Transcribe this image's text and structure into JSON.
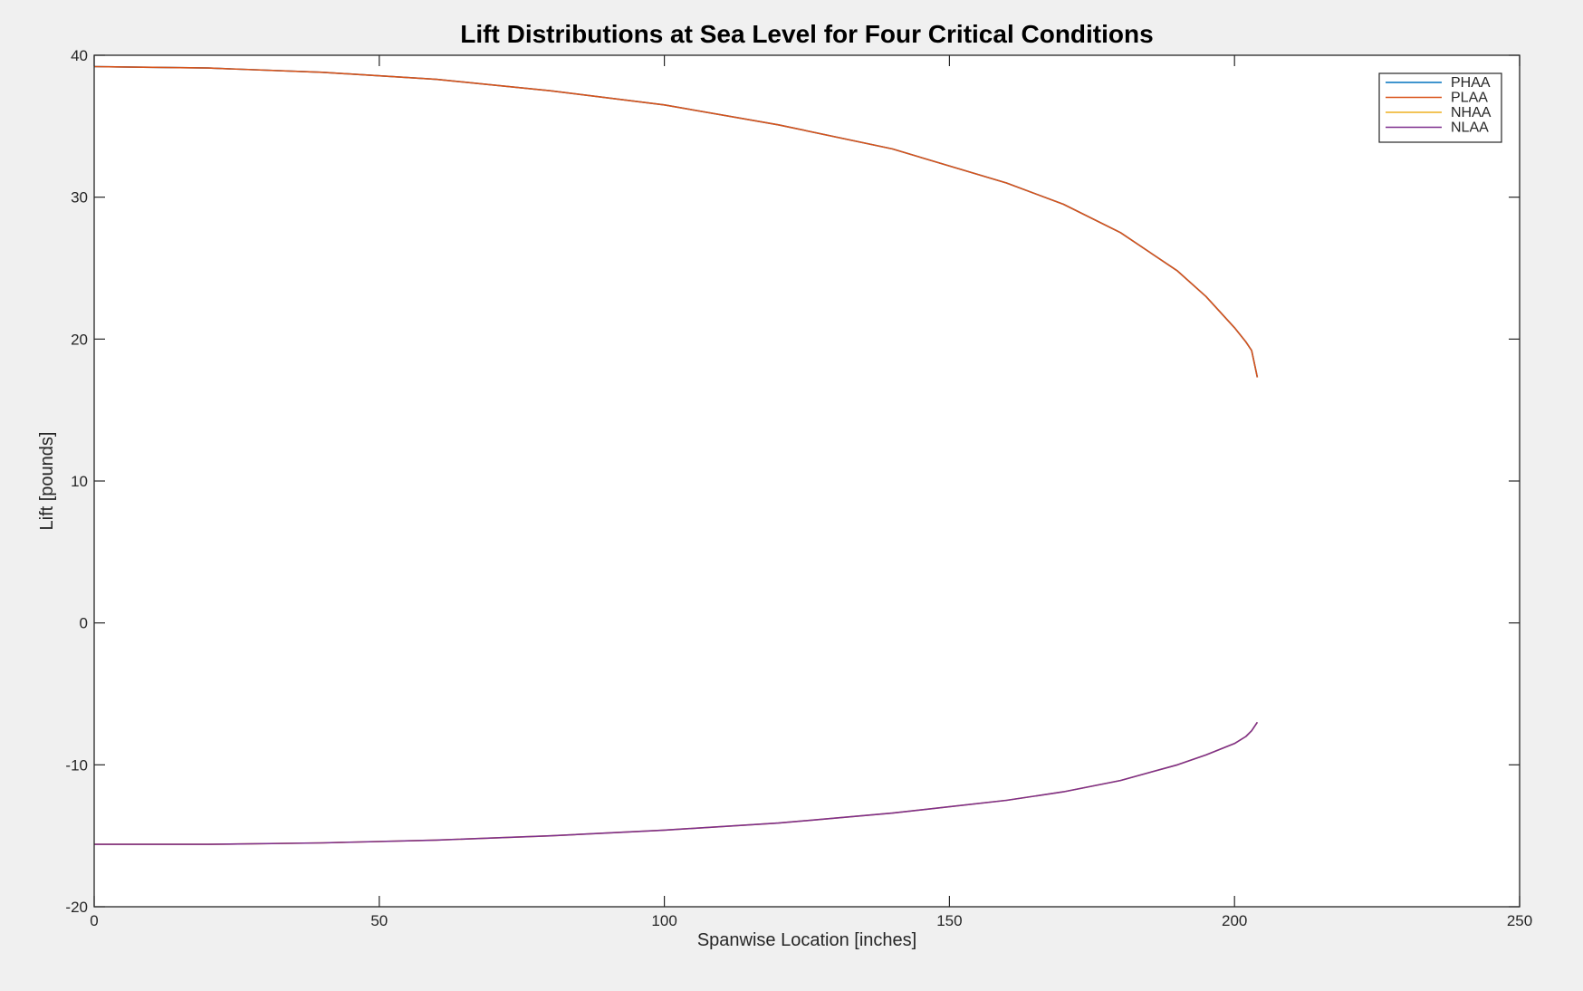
{
  "chart_data": {
    "type": "line",
    "title": "Lift Distributions at Sea Level for Four Critical Conditions",
    "xlabel": "Spanwise Location [inches]",
    "ylabel": "Lift [pounds]",
    "xlim": [
      0,
      250
    ],
    "ylim": [
      -20,
      40
    ],
    "xticks": [
      0,
      50,
      100,
      150,
      200,
      250
    ],
    "yticks": [
      -20,
      -10,
      0,
      10,
      20,
      30,
      40
    ],
    "xtick_labels": [
      "0",
      "50",
      "100",
      "150",
      "200",
      "250"
    ],
    "ytick_labels": [
      "-20",
      "-10",
      "0",
      "10",
      "20",
      "30",
      "40"
    ],
    "grid": false,
    "legend_position": "top-right",
    "series": [
      {
        "name": "PHAA",
        "color": "#0072bd",
        "x": [
          0,
          20,
          40,
          60,
          80,
          100,
          120,
          140,
          160,
          170,
          180,
          190,
          195,
          200,
          202,
          203,
          204
        ],
        "y": [
          39.2,
          39.1,
          38.8,
          38.3,
          37.5,
          36.5,
          35.1,
          33.4,
          31.0,
          29.5,
          27.5,
          24.8,
          23.0,
          20.8,
          19.8,
          19.2,
          17.3
        ]
      },
      {
        "name": "PLAA",
        "color": "#d95319",
        "x": [
          0,
          20,
          40,
          60,
          80,
          100,
          120,
          140,
          160,
          170,
          180,
          190,
          195,
          200,
          202,
          203,
          204
        ],
        "y": [
          39.2,
          39.1,
          38.8,
          38.3,
          37.5,
          36.5,
          35.1,
          33.4,
          31.0,
          29.5,
          27.5,
          24.8,
          23.0,
          20.8,
          19.8,
          19.2,
          17.3
        ]
      },
      {
        "name": "NHAA",
        "color": "#edb120",
        "x": [
          0,
          20,
          40,
          60,
          80,
          100,
          120,
          140,
          160,
          170,
          180,
          190,
          195,
          200,
          202,
          203,
          204
        ],
        "y": [
          -15.6,
          -15.6,
          -15.5,
          -15.3,
          -15.0,
          -14.6,
          -14.1,
          -13.4,
          -12.5,
          -11.9,
          -11.1,
          -10.0,
          -9.3,
          -8.5,
          -8.0,
          -7.6,
          -7.0
        ]
      },
      {
        "name": "NLAA",
        "color": "#7e2f8e",
        "x": [
          0,
          20,
          40,
          60,
          80,
          100,
          120,
          140,
          160,
          170,
          180,
          190,
          195,
          200,
          202,
          203,
          204
        ],
        "y": [
          -15.6,
          -15.6,
          -15.5,
          -15.3,
          -15.0,
          -14.6,
          -14.1,
          -13.4,
          -12.5,
          -11.9,
          -11.1,
          -10.0,
          -9.3,
          -8.5,
          -8.0,
          -7.6,
          -7.0
        ]
      }
    ]
  }
}
